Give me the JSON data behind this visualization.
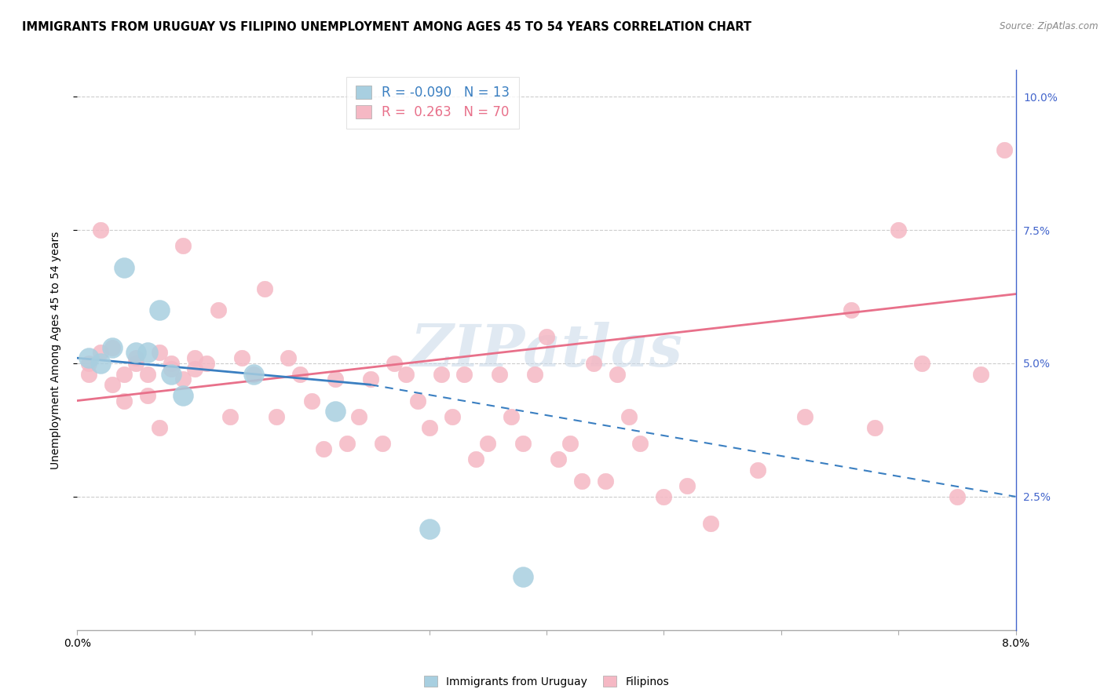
{
  "title": "IMMIGRANTS FROM URUGUAY VS FILIPINO UNEMPLOYMENT AMONG AGES 45 TO 54 YEARS CORRELATION CHART",
  "source": "Source: ZipAtlas.com",
  "ylabel": "Unemployment Among Ages 45 to 54 years",
  "xlim": [
    0.0,
    0.08
  ],
  "ylim": [
    0.0,
    0.105
  ],
  "yticks": [
    0.025,
    0.05,
    0.075,
    0.1
  ],
  "ytick_labels_right": [
    "2.5%",
    "5.0%",
    "7.5%",
    "10.0%"
  ],
  "xtick_positions": [
    0.0,
    0.01,
    0.02,
    0.03,
    0.04,
    0.05,
    0.06,
    0.07,
    0.08
  ],
  "legend_r_uruguay": "-0.090",
  "legend_n_uruguay": "13",
  "legend_r_filipino": "0.263",
  "legend_n_filipino": "70",
  "uruguay_color": "#a8cfe0",
  "filipino_color": "#f5b8c4",
  "uruguay_line_color": "#3a7fc1",
  "filipino_line_color": "#e8708a",
  "watermark": "ZIPatlas",
  "uru_x": [
    0.001,
    0.002,
    0.003,
    0.004,
    0.005,
    0.006,
    0.007,
    0.008,
    0.009,
    0.015,
    0.022,
    0.03,
    0.038
  ],
  "uru_y": [
    0.051,
    0.05,
    0.053,
    0.068,
    0.052,
    0.052,
    0.06,
    0.048,
    0.044,
    0.048,
    0.041,
    0.019,
    0.01
  ],
  "fil_x": [
    0.001,
    0.001,
    0.002,
    0.002,
    0.003,
    0.003,
    0.004,
    0.004,
    0.005,
    0.005,
    0.006,
    0.006,
    0.007,
    0.007,
    0.008,
    0.008,
    0.009,
    0.009,
    0.01,
    0.01,
    0.011,
    0.012,
    0.013,
    0.014,
    0.015,
    0.016,
    0.017,
    0.018,
    0.019,
    0.02,
    0.021,
    0.022,
    0.023,
    0.024,
    0.025,
    0.026,
    0.027,
    0.028,
    0.029,
    0.03,
    0.031,
    0.032,
    0.033,
    0.034,
    0.035,
    0.036,
    0.037,
    0.038,
    0.039,
    0.04,
    0.041,
    0.042,
    0.043,
    0.044,
    0.045,
    0.046,
    0.047,
    0.048,
    0.05,
    0.052,
    0.054,
    0.058,
    0.062,
    0.066,
    0.068,
    0.07,
    0.072,
    0.075,
    0.077,
    0.079
  ],
  "fil_y": [
    0.05,
    0.048,
    0.052,
    0.075,
    0.046,
    0.053,
    0.048,
    0.043,
    0.051,
    0.05,
    0.048,
    0.044,
    0.052,
    0.038,
    0.05,
    0.049,
    0.047,
    0.072,
    0.051,
    0.049,
    0.05,
    0.06,
    0.04,
    0.051,
    0.048,
    0.064,
    0.04,
    0.051,
    0.048,
    0.043,
    0.034,
    0.047,
    0.035,
    0.04,
    0.047,
    0.035,
    0.05,
    0.048,
    0.043,
    0.038,
    0.048,
    0.04,
    0.048,
    0.032,
    0.035,
    0.048,
    0.04,
    0.035,
    0.048,
    0.055,
    0.032,
    0.035,
    0.028,
    0.05,
    0.028,
    0.048,
    0.04,
    0.035,
    0.025,
    0.027,
    0.02,
    0.03,
    0.04,
    0.06,
    0.038,
    0.075,
    0.05,
    0.025,
    0.048,
    0.09
  ]
}
